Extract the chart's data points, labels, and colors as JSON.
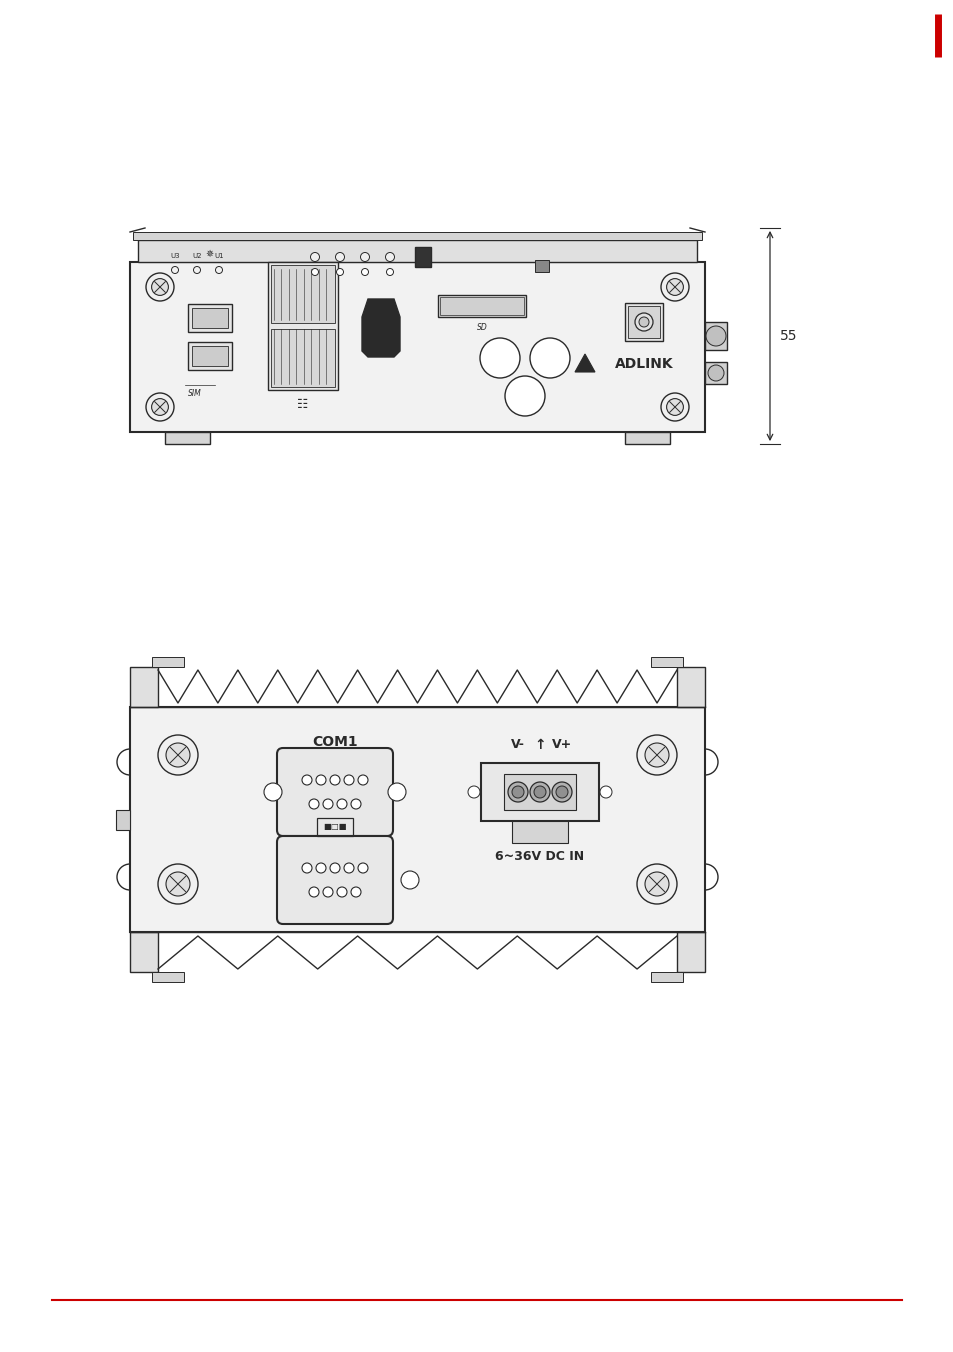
{
  "background_color": "#ffffff",
  "line_color": "#2a2a2a",
  "dim_label": "55",
  "power_label": "6~36V DC IN",
  "com1_label": "COM1",
  "vminus_label": "V-",
  "vplus_label": "V+",
  "ground_arrow": "↑",
  "red_bar_color": "#cc0000",
  "red_line_color": "#cc0000"
}
